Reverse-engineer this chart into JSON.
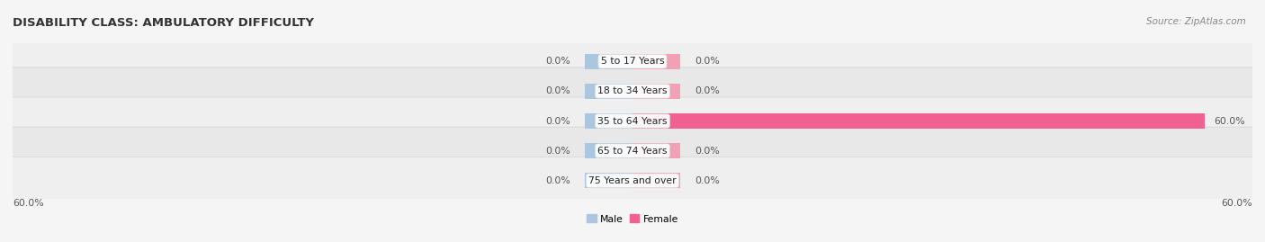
{
  "title": "DISABILITY CLASS: AMBULATORY DIFFICULTY",
  "source": "Source: ZipAtlas.com",
  "categories": [
    "5 to 17 Years",
    "18 to 34 Years",
    "35 to 64 Years",
    "65 to 74 Years",
    "75 Years and over"
  ],
  "male_values": [
    0.0,
    0.0,
    0.0,
    0.0,
    0.0
  ],
  "female_values": [
    0.0,
    0.0,
    60.0,
    0.0,
    0.0
  ],
  "male_color": "#adc6e0",
  "female_color": "#f2a0b5",
  "female_color_bright": "#f06090",
  "row_colors": [
    "#efefef",
    "#e8e8e8",
    "#efefef",
    "#e8e8e8",
    "#efefef"
  ],
  "fig_bg_color": "#f5f5f5",
  "male_label": "Male",
  "female_label": "Female",
  "axis_label_left": "60.0%",
  "axis_label_right": "60.0%",
  "xlim_abs": 60.0,
  "stub_size": 5.0,
  "center_label_color": "#ffffff",
  "value_label_color": "#555555",
  "title_color": "#333333",
  "title_fontsize": 9.5,
  "label_fontsize": 7.8,
  "source_fontsize": 7.5
}
